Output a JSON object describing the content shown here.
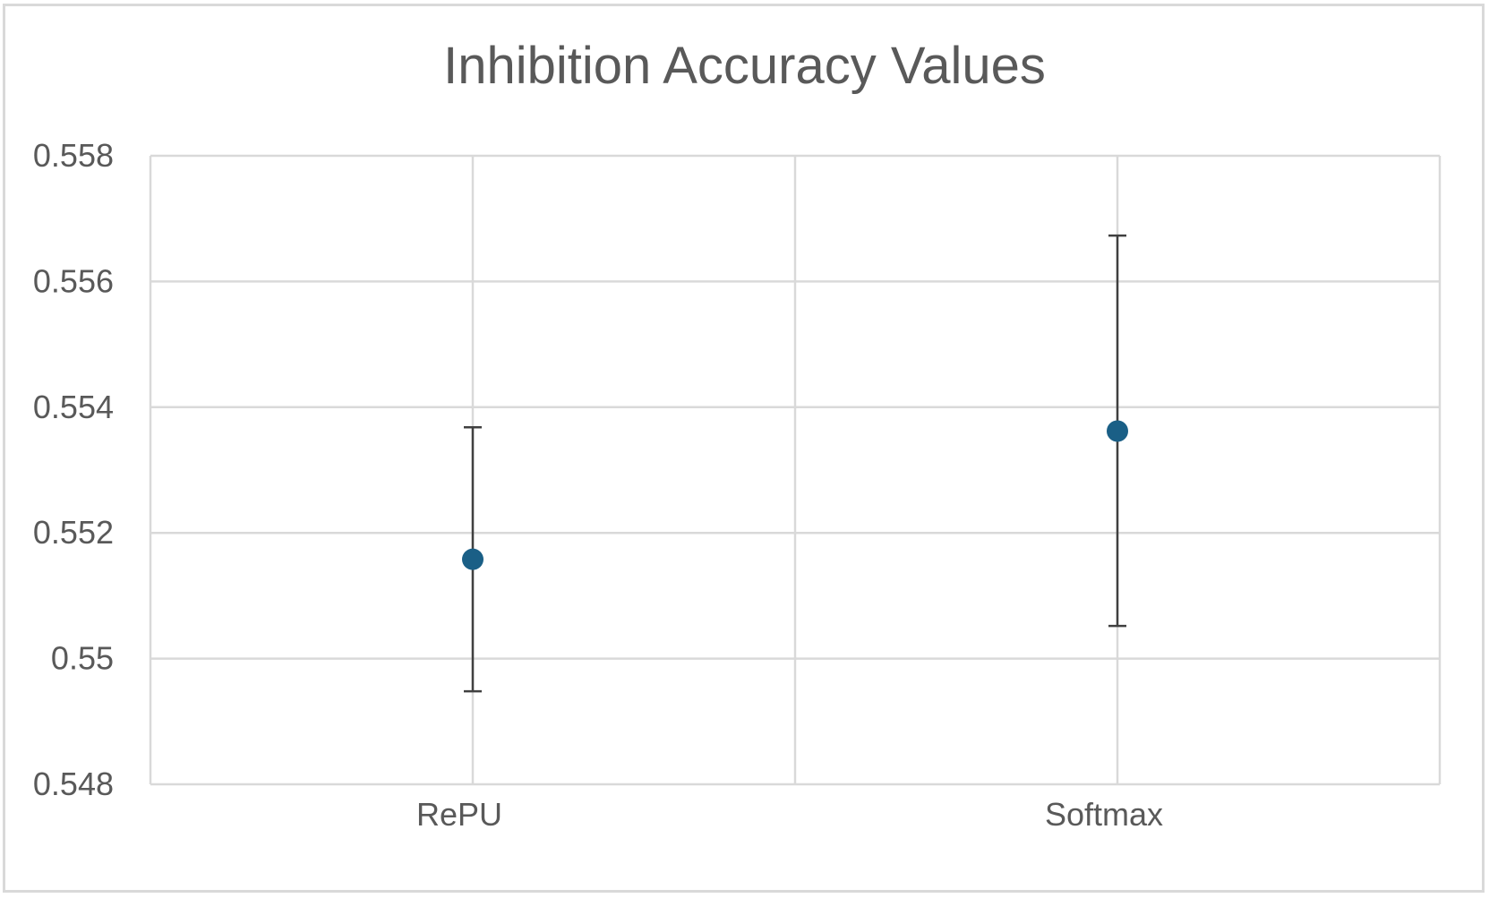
{
  "chart_data": {
    "type": "scatter",
    "title": "Inhibition Accuracy Values",
    "xlabel": "",
    "ylabel": "",
    "categories": [
      "RePU",
      "Softmax"
    ],
    "series": [
      {
        "values": [
          0.55158,
          0.55362
        ],
        "error_low": [
          0.54948,
          0.55052
        ],
        "error_high": [
          0.55368,
          0.55673
        ]
      }
    ],
    "ylim": [
      0.548,
      0.558
    ],
    "ytick_labels": [
      "0.548",
      "0.55",
      "0.552",
      "0.554",
      "0.556",
      "0.558"
    ],
    "grid": true,
    "legend": "none",
    "colors": {
      "marker": "#1a5f86",
      "error_bar": "#404040",
      "grid": "#d9d9d9",
      "text": "#595959"
    }
  }
}
